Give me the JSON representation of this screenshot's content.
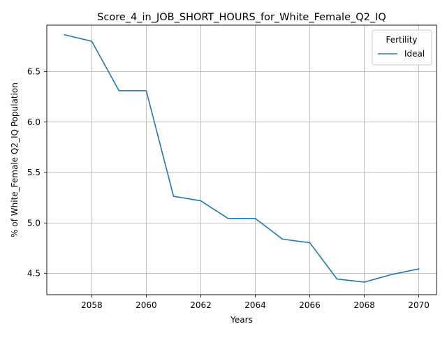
{
  "chart_data": {
    "type": "line",
    "title": "Score_4_in_JOB_SHORT_HOURS_for_White_Female_Q2_IQ",
    "xlabel": "Years",
    "ylabel": "% of White_Female Q2_IQ Population",
    "xlim": [
      2056.35,
      2070.65
    ],
    "ylim": [
      4.29,
      6.96
    ],
    "x_ticks": [
      2058,
      2060,
      2062,
      2064,
      2066,
      2068,
      2070
    ],
    "y_ticks": [
      4.5,
      5.0,
      5.5,
      6.0,
      6.5
    ],
    "x_tick_labels": [
      "2058",
      "2060",
      "2062",
      "2064",
      "2066",
      "2068",
      "2070"
    ],
    "y_tick_labels": [
      "4.5",
      "5.0",
      "5.5",
      "6.0",
      "6.5"
    ],
    "grid": true,
    "legend": {
      "title": "Fertility",
      "position": "top-right"
    },
    "x": [
      2057,
      2058,
      2059,
      2060,
      2061,
      2062,
      2063,
      2064,
      2065,
      2066,
      2067,
      2068,
      2069,
      2070
    ],
    "series": [
      {
        "name": "Ideal",
        "color": "#1f77b4",
        "values": [
          6.865,
          6.8,
          6.31,
          6.31,
          5.265,
          5.22,
          5.045,
          5.045,
          4.84,
          4.805,
          4.445,
          4.415,
          4.49,
          4.545
        ]
      }
    ]
  }
}
